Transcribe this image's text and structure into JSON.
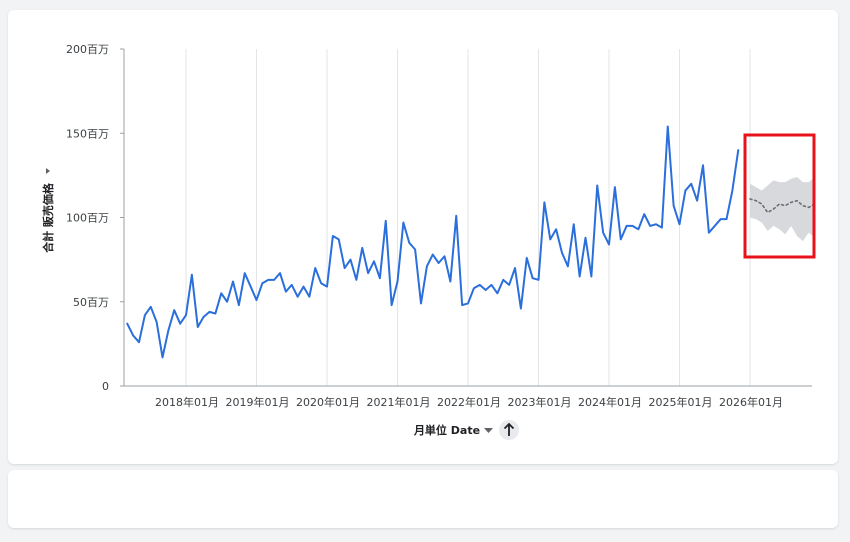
{
  "chart_data": {
    "type": "line",
    "xlabel": "月単位 Date",
    "ylabel": "合計 販売価格",
    "x_sort": "ascending",
    "ylim": [
      0,
      200
    ],
    "y_unit": "百万",
    "y_ticks": [
      "0",
      "50百万",
      "100百万",
      "150百万",
      "200百万"
    ],
    "x_ticks": [
      "2018年01月",
      "2019年01月",
      "2020年01月",
      "2021年01月",
      "2022年01月",
      "2023年01月",
      "2024年01月",
      "2025年01月",
      "2026年01月"
    ],
    "grid": "vertical lines at year starts",
    "series": [
      {
        "kind": "actual",
        "color": "#2a6fdb",
        "x_start": "2017-03",
        "values": [
          37,
          30,
          26,
          42,
          47,
          38,
          17,
          33,
          45,
          37,
          42,
          66,
          35,
          41,
          44,
          43,
          55,
          50,
          62,
          48,
          67,
          59,
          51,
          61,
          63,
          63,
          67,
          56,
          60,
          53,
          59,
          53,
          70,
          61,
          59,
          89,
          87,
          70,
          75,
          63,
          82,
          67,
          74,
          64,
          98,
          48,
          62,
          97,
          85,
          81,
          49,
          71,
          78,
          73,
          77,
          62,
          101,
          48,
          49,
          58,
          60,
          57,
          60,
          55,
          63,
          60,
          70,
          46,
          76,
          64,
          63,
          109,
          87,
          93,
          79,
          71,
          96,
          65,
          88,
          65,
          119,
          91,
          84,
          118,
          87,
          95,
          95,
          93,
          102,
          95,
          96,
          94,
          154,
          107,
          96,
          116,
          120,
          110,
          131,
          91,
          95,
          99,
          99,
          116,
          140
        ]
      },
      {
        "kind": "forecast",
        "color": "#6b6e73",
        "x_start": "2026-01",
        "values": [
          111,
          110,
          108,
          103,
          105,
          108,
          107,
          109,
          110,
          107,
          106,
          108
        ],
        "band_upper": [
          120,
          118,
          116,
          119,
          122,
          121,
          121,
          123,
          124,
          121,
          121,
          124
        ],
        "band_lower": [
          100,
          99,
          97,
          92,
          95,
          93,
          90,
          95,
          89,
          86,
          91,
          88
        ],
        "band_color": "#d7d9dd"
      }
    ],
    "highlight_box_color": "#e8121a"
  },
  "controls": {
    "x_dropdown_icon": "caret-down-icon",
    "y_dropdown_icon": "caret-down-icon",
    "sort_icon": "arrow-up-icon"
  }
}
